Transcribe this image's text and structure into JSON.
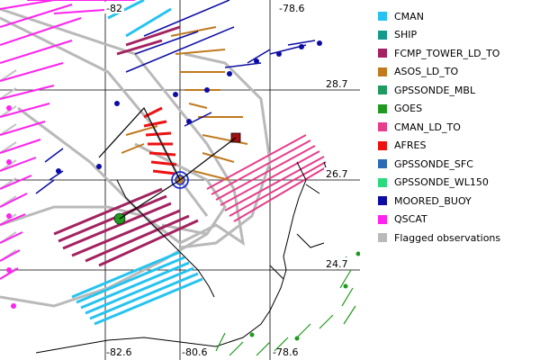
{
  "map": {
    "lat_labels": [
      "28.7",
      "26.7",
      "24.7"
    ],
    "lon_labels_top": [
      "-82",
      "-78.6"
    ],
    "lon_labels_bottom": [
      "-82.6",
      "-80.6",
      "-78.6"
    ]
  },
  "legend": [
    {
      "name": "CMAN",
      "color": "#27c3f0"
    },
    {
      "name": "SHIP",
      "color": "#139a8c"
    },
    {
      "name": "FCMP_TOWER_LD_TO",
      "color": "#a3225f"
    },
    {
      "name": "ASOS_LD_TO",
      "color": "#c07a1f"
    },
    {
      "name": "GPSSONDE_MBL",
      "color": "#1f9a60"
    },
    {
      "name": "GOES",
      "color": "#1f9a1f"
    },
    {
      "name": "CMAN_LD_TO",
      "color": "#e73d8a"
    },
    {
      "name": "AFRES",
      "color": "#ee1111"
    },
    {
      "name": "GPSSONDE_SFC",
      "color": "#2b6bb6"
    },
    {
      "name": "GPSSONDE_WL150",
      "color": "#2bd97f"
    },
    {
      "name": "MOORED_BUOY",
      "color": "#0c0ca4"
    },
    {
      "name": "QSCAT",
      "color": "#ff22f0"
    },
    {
      "name": "Flagged observations",
      "color": "#b9b9b9"
    }
  ]
}
